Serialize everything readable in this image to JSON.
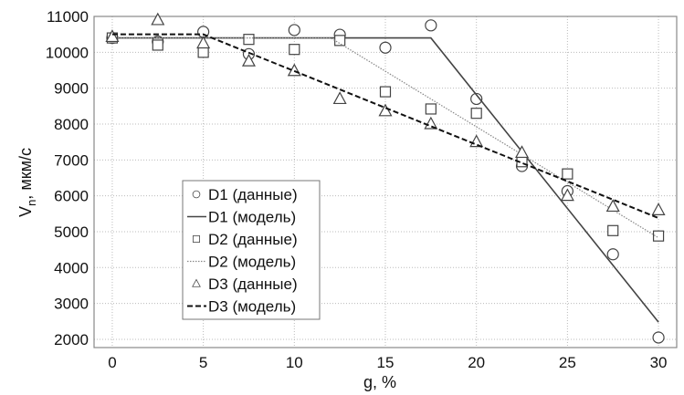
{
  "chart_data": {
    "type": "line",
    "title": "",
    "xlabel": "g, %",
    "ylabel": "V",
    "ylabel_sub": "n",
    "ylabel_unit": ", мкм/с",
    "xlim": [
      -1,
      31
    ],
    "ylim": [
      1770,
      11000
    ],
    "xticks": [
      0,
      5,
      10,
      15,
      20,
      25,
      30
    ],
    "yticks": [
      2000,
      3000,
      4000,
      5000,
      6000,
      7000,
      8000,
      9000,
      10000,
      11000
    ],
    "grid": true,
    "legend_position": "center-left",
    "x": [
      0,
      2.5,
      5,
      7.5,
      10,
      12.5,
      15,
      17.5,
      20,
      22.5,
      25,
      27.5,
      30
    ],
    "series": [
      {
        "name": "D1 (данные)",
        "kind": "scatter",
        "marker": "circle",
        "values": [
          10400,
          10300,
          10570,
          9950,
          10620,
          10490,
          10130,
          10750,
          8700,
          6830,
          6130,
          4370,
          2050
        ]
      },
      {
        "name": "D1 (модель)",
        "kind": "line",
        "style": "solid",
        "points": [
          [
            0,
            10400
          ],
          [
            17.5,
            10400
          ],
          [
            30,
            2480
          ]
        ]
      },
      {
        "name": "D2 (данные)",
        "kind": "scatter",
        "marker": "square",
        "values": [
          10400,
          10200,
          10000,
          10360,
          10080,
          10330,
          8900,
          8420,
          8300,
          6950,
          6610,
          5030,
          4880
        ]
      },
      {
        "name": "D2 (модель)",
        "kind": "line",
        "style": "dotted",
        "points": [
          [
            0,
            10400
          ],
          [
            12,
            10400
          ],
          [
            30,
            4830
          ]
        ]
      },
      {
        "name": "D3 (данные)",
        "kind": "scatter",
        "marker": "triangle",
        "values": [
          10430,
          10900,
          10250,
          9750,
          9480,
          8700,
          8360,
          8000,
          7500,
          7200,
          6000,
          5700,
          5600
        ]
      },
      {
        "name": "D3 (модель)",
        "kind": "line",
        "style": "dashed",
        "points": [
          [
            0,
            10500
          ],
          [
            5,
            10500
          ],
          [
            30,
            5380
          ]
        ]
      }
    ]
  }
}
